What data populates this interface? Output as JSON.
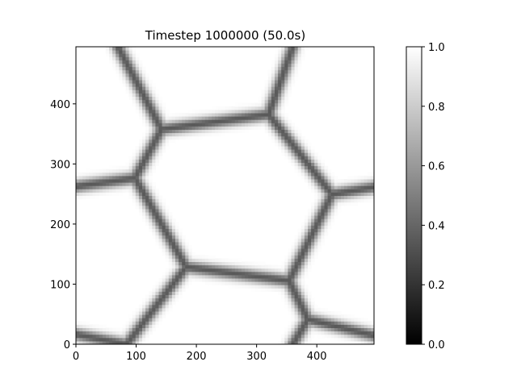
{
  "chart_data": {
    "type": "heatmap",
    "title": "Timestep 1000000 (50.0s)",
    "xlabel": "",
    "ylabel": "",
    "xlim": [
      0,
      495
    ],
    "ylim": [
      0,
      495
    ],
    "x_ticks": [
      0,
      100,
      200,
      300,
      400
    ],
    "y_ticks": [
      0,
      100,
      200,
      300,
      400
    ],
    "colormap": "gray",
    "colorbar": {
      "range": [
        0.0,
        1.0
      ],
      "ticks": [
        "0.0",
        "0.2",
        "0.4",
        "0.6",
        "0.8",
        "1.0"
      ]
    },
    "field": {
      "description_values": "grain boundaries are dark (~0.35), grain interiors white (1.0)",
      "boundary_min_value": 0.35,
      "interior_value": 1.0,
      "junctions": [
        [
          142,
          358
        ],
        [
          320,
          383
        ],
        [
          98,
          277
        ],
        [
          425,
          250
        ],
        [
          183,
          129
        ],
        [
          354,
          106
        ],
        [
          385,
          42
        ],
        [
          84,
          0
        ]
      ],
      "boundaries": [
        [
          [
            70,
            495
          ],
          [
            142,
            358
          ]
        ],
        [
          [
            142,
            358
          ],
          [
            320,
            383
          ]
        ],
        [
          [
            360,
            495
          ],
          [
            320,
            383
          ]
        ],
        [
          [
            142,
            358
          ],
          [
            98,
            277
          ]
        ],
        [
          [
            0,
            263
          ],
          [
            98,
            277
          ]
        ],
        [
          [
            320,
            383
          ],
          [
            425,
            250
          ]
        ],
        [
          [
            425,
            250
          ],
          [
            495,
            262
          ]
        ],
        [
          [
            98,
            277
          ],
          [
            183,
            129
          ]
        ],
        [
          [
            183,
            129
          ],
          [
            354,
            106
          ]
        ],
        [
          [
            354,
            106
          ],
          [
            425,
            250
          ]
        ],
        [
          [
            354,
            106
          ],
          [
            385,
            42
          ]
        ],
        [
          [
            385,
            42
          ],
          [
            495,
            15
          ]
        ],
        [
          [
            385,
            42
          ],
          [
            360,
            0
          ]
        ],
        [
          [
            183,
            129
          ],
          [
            84,
            0
          ]
        ],
        [
          [
            0,
            17
          ],
          [
            84,
            0
          ]
        ]
      ]
    }
  }
}
